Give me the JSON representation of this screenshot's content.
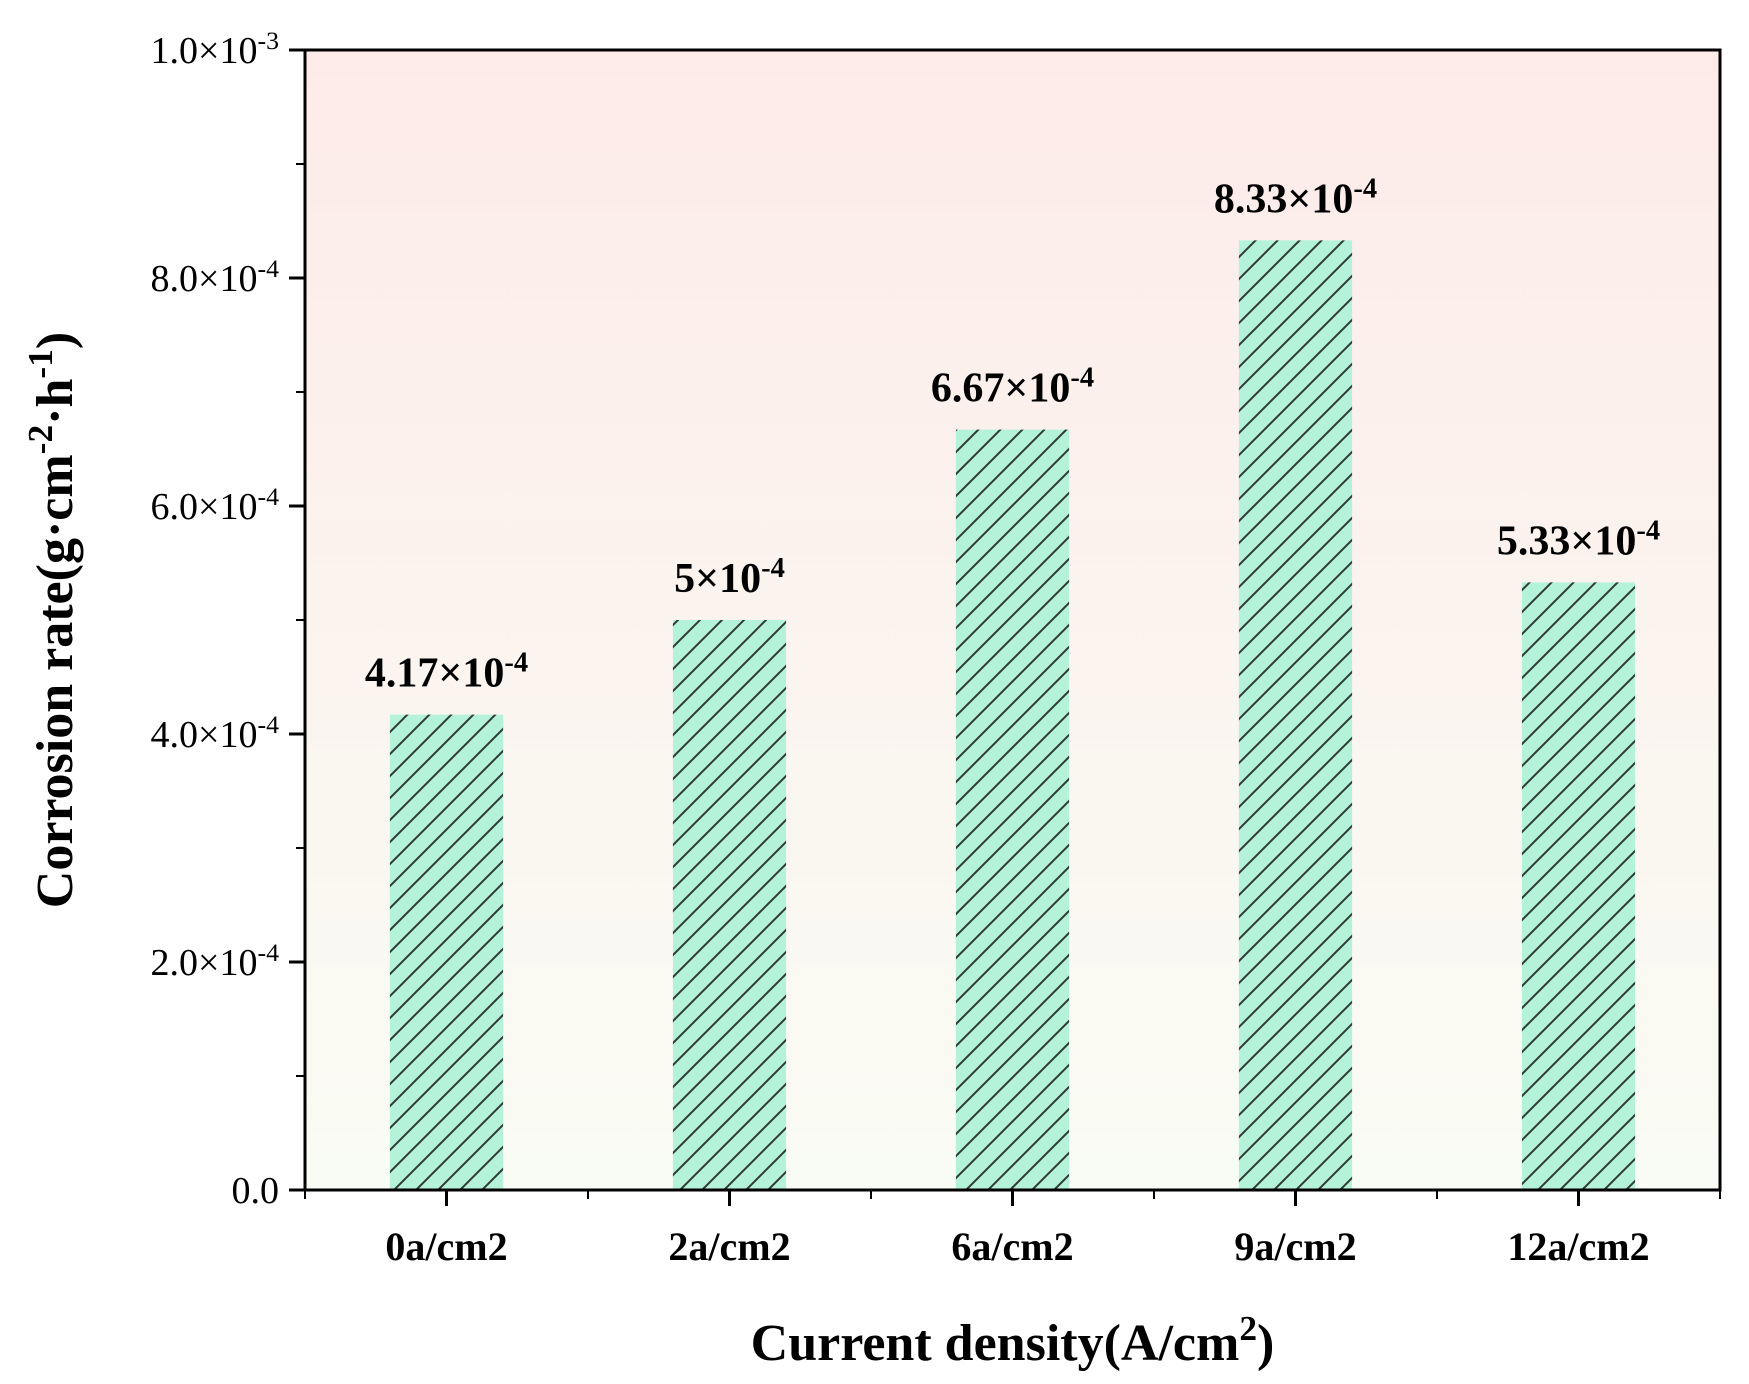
{
  "chart_data": {
    "type": "bar",
    "categories": [
      "0a/cm2",
      "2a/cm2",
      "6a/cm2",
      "9a/cm2",
      "12a/cm2"
    ],
    "values": [
      0.000417,
      0.0005,
      0.000667,
      0.000833,
      0.000533
    ],
    "data_labels": [
      {
        "base": "4.17×10",
        "exp": "-4"
      },
      {
        "base": "5×10",
        "exp": "-4"
      },
      {
        "base": "6.67×10",
        "exp": "-4"
      },
      {
        "base": "8.33×10",
        "exp": "-4"
      },
      {
        "base": "5.33×10",
        "exp": "-4"
      }
    ],
    "xlabel": {
      "base": "Current density(A/cm",
      "sup": "2",
      "tail": ")"
    },
    "ylabel": {
      "parts": [
        {
          "t": "Corrosion rate(g·cm",
          "s": false
        },
        {
          "t": "-2",
          "s": true
        },
        {
          "t": "·h",
          "s": false
        },
        {
          "t": "-1",
          "s": true
        },
        {
          "t": ")",
          "s": false
        }
      ]
    },
    "ylim": [
      0,
      0.001
    ],
    "yticks": [
      {
        "value": 0,
        "base": "0.0",
        "exp": ""
      },
      {
        "value": 0.0002,
        "base": "2.0×10",
        "exp": "-4"
      },
      {
        "value": 0.0004,
        "base": "4.0×10",
        "exp": "-4"
      },
      {
        "value": 0.0006,
        "base": "6.0×10",
        "exp": "-4"
      },
      {
        "value": 0.0008,
        "base": "8.0×10",
        "exp": "-4"
      },
      {
        "value": 0.001,
        "base": "1.0×10",
        "exp": "-3"
      }
    ],
    "minor_y_step": 0.0001,
    "grid": false,
    "colors": {
      "bar_fill": "#b4f2da",
      "hatch": "#2f3a34",
      "background_top": "#fdebe9",
      "background_bottom": "#f9fcf4",
      "axis": "#000000"
    }
  }
}
